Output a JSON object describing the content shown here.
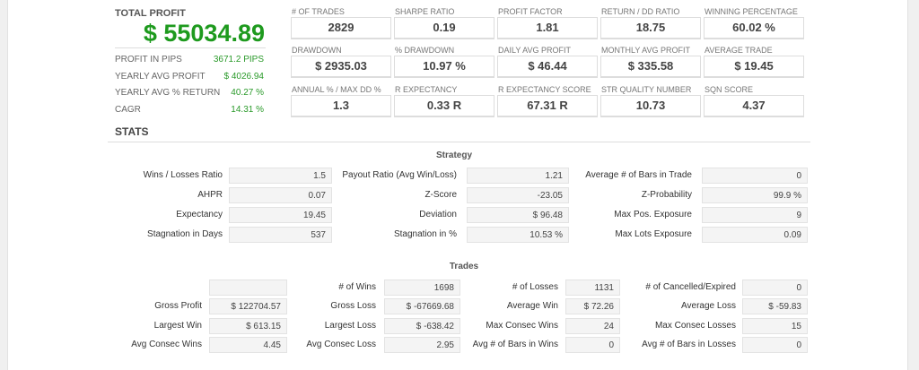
{
  "total_profit": {
    "label": "TOTAL PROFIT",
    "value": "$ 55034.89"
  },
  "summary": [
    {
      "label": "PROFIT IN PIPS",
      "value": "3671.2 PIPS"
    },
    {
      "label": "YEARLY AVG PROFIT",
      "value": "$ 4026.94"
    },
    {
      "label": "YEARLY AVG % RETURN",
      "value": "40.27 %"
    },
    {
      "label": "CAGR",
      "value": "14.31 %"
    }
  ],
  "cards": [
    [
      {
        "label": "# OF TRADES",
        "value": "2829"
      },
      {
        "label": "SHARPE RATIO",
        "value": "0.19"
      },
      {
        "label": "PROFIT FACTOR",
        "value": "1.81"
      },
      {
        "label": "RETURN / DD RATIO",
        "value": "18.75"
      },
      {
        "label": "WINNING PERCENTAGE",
        "value": "60.02 %"
      }
    ],
    [
      {
        "label": "DRAWDOWN",
        "value": "$ 2935.03"
      },
      {
        "label": "% DRAWDOWN",
        "value": "10.97 %"
      },
      {
        "label": "DAILY AVG PROFIT",
        "value": "$ 46.44"
      },
      {
        "label": "MONTHLY AVG PROFIT",
        "value": "$ 335.58"
      },
      {
        "label": "AVERAGE TRADE",
        "value": "$ 19.45"
      }
    ],
    [
      {
        "label": "ANNUAL % / MAX DD %",
        "value": "1.3"
      },
      {
        "label": "R EXPECTANCY",
        "value": "0.33 R"
      },
      {
        "label": "R EXPECTANCY SCORE",
        "value": "67.31 R"
      },
      {
        "label": "STR QUALITY NUMBER",
        "value": "10.73"
      },
      {
        "label": "SQN SCORE",
        "value": "4.37"
      }
    ]
  ],
  "stats_title": "STATS",
  "strategy": {
    "title": "Strategy",
    "rows": [
      [
        {
          "label": "Wins / Losses Ratio",
          "value": "1.5"
        },
        {
          "label": "Payout Ratio (Avg Win/Loss)",
          "value": "1.21"
        },
        {
          "label": "Average # of Bars in Trade",
          "value": "0"
        }
      ],
      [
        {
          "label": "AHPR",
          "value": "0.07"
        },
        {
          "label": "Z-Score",
          "value": "-23.05"
        },
        {
          "label": "Z-Probability",
          "value": "99.9 %"
        }
      ],
      [
        {
          "label": "Expectancy",
          "value": "19.45"
        },
        {
          "label": "Deviation",
          "value": "$ 96.48"
        },
        {
          "label": "Max Pos. Exposure",
          "value": "9"
        }
      ],
      [
        {
          "label": "Stagnation in Days",
          "value": "537"
        },
        {
          "label": "Stagnation in %",
          "value": "10.53 %"
        },
        {
          "label": "Max Lots Exposure",
          "value": "0.09"
        }
      ]
    ]
  },
  "trades": {
    "title": "Trades",
    "rows": [
      [
        {
          "label": "",
          "value": ""
        },
        {
          "label": "# of Wins",
          "value": "1698"
        },
        {
          "label": "# of Losses",
          "value": "1131"
        },
        {
          "label": "# of Cancelled/Expired",
          "value": "0"
        }
      ],
      [
        {
          "label": "Gross Profit",
          "value": "$ 122704.57"
        },
        {
          "label": "Gross Loss",
          "value": "$ -67669.68"
        },
        {
          "label": "Average Win",
          "value": "$ 72.26"
        },
        {
          "label": "Average Loss",
          "value": "$ -59.83"
        }
      ],
      [
        {
          "label": "Largest Win",
          "value": "$ 613.15"
        },
        {
          "label": "Largest Loss",
          "value": "$ -638.42"
        },
        {
          "label": "Max Consec Wins",
          "value": "24"
        },
        {
          "label": "Max Consec Losses",
          "value": "15"
        }
      ],
      [
        {
          "label": "Avg Consec Wins",
          "value": "4.45"
        },
        {
          "label": "Avg Consec Loss",
          "value": "2.95"
        },
        {
          "label": "Avg # of Bars in Wins",
          "value": "0"
        },
        {
          "label": "Avg # of Bars in Losses",
          "value": "0"
        }
      ]
    ]
  }
}
